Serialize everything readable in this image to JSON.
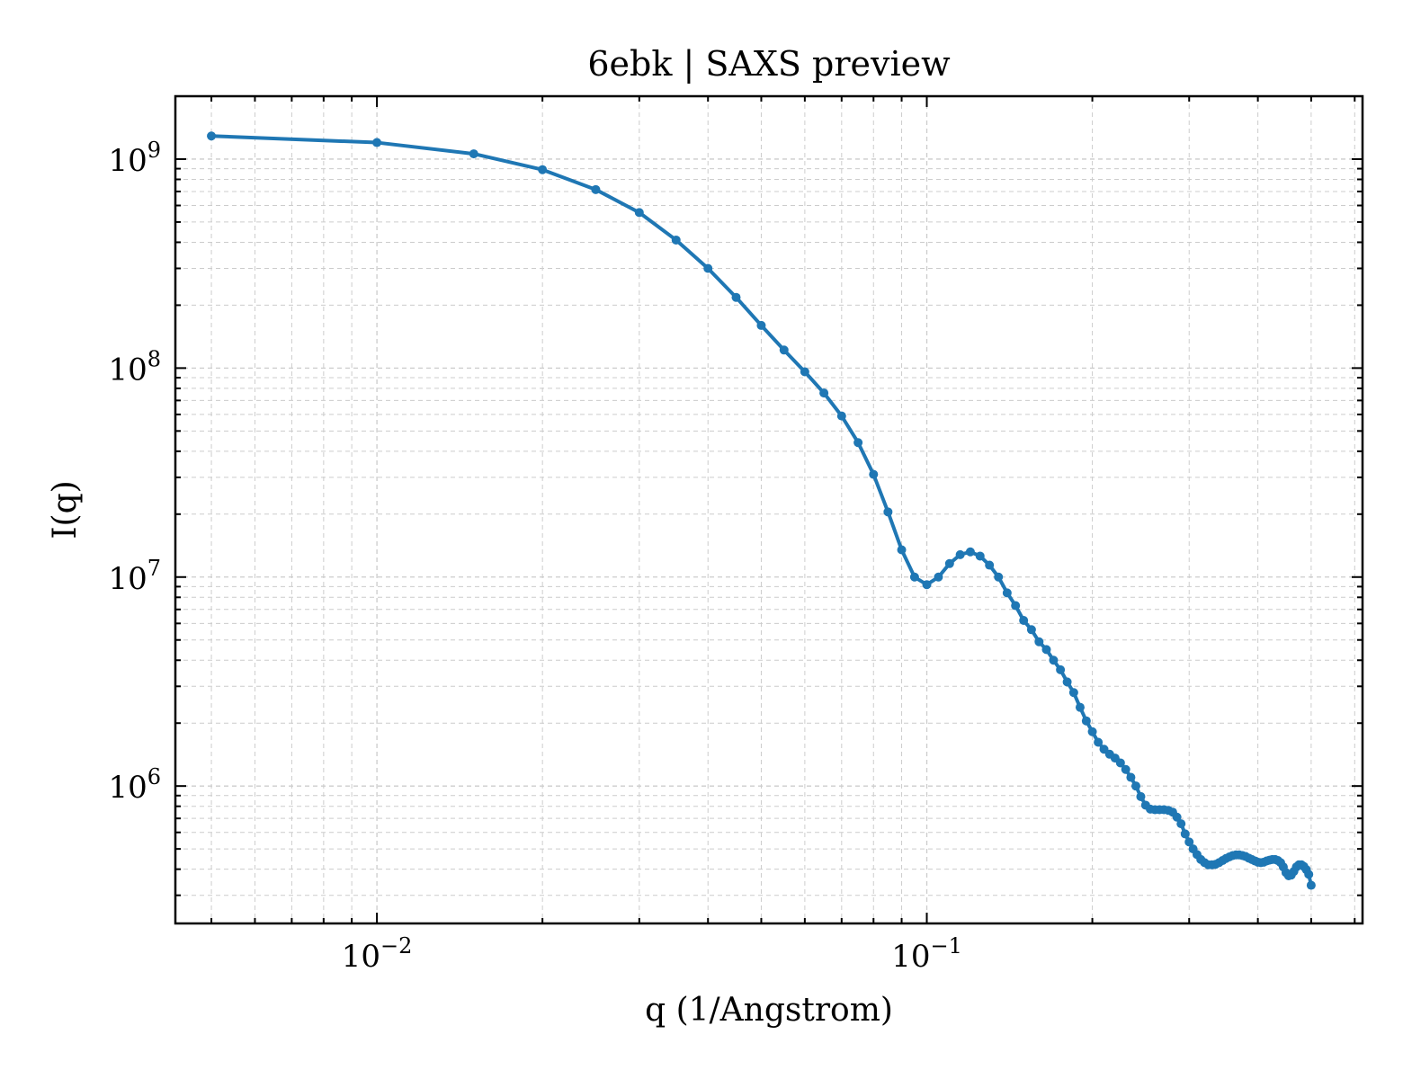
{
  "chart_data": {
    "type": "line",
    "title": "6ebk | SAXS preview",
    "xlabel": "q (1/Angstrom)",
    "ylabel": "I(q)",
    "xscale": "log",
    "yscale": "log",
    "xlim": [
      0.0043,
      0.62
    ],
    "ylim": [
      220000,
      2000000000
    ],
    "grid": true,
    "legend": "none",
    "x_ticks": [
      {
        "base": "10",
        "exp": "−2",
        "value": 0.01
      },
      {
        "base": "10",
        "exp": "−1",
        "value": 0.1
      }
    ],
    "y_ticks": [
      {
        "base": "10",
        "exp": "6",
        "value": 1000000
      },
      {
        "base": "10",
        "exp": "7",
        "value": 10000000
      },
      {
        "base": "10",
        "exp": "8",
        "value": 100000000
      },
      {
        "base": "10",
        "exp": "9",
        "value": 1000000000
      }
    ],
    "series_color": "#1f77b4",
    "x": [
      0.005,
      0.01,
      0.015,
      0.02,
      0.025,
      0.03,
      0.035,
      0.04,
      0.045,
      0.05,
      0.055,
      0.06,
      0.065,
      0.07,
      0.075,
      0.08,
      0.085,
      0.09,
      0.095,
      0.1,
      0.105,
      0.11,
      0.115,
      0.12,
      0.125,
      0.13,
      0.135,
      0.14,
      0.145,
      0.15,
      0.155,
      0.16,
      0.165,
      0.17,
      0.175,
      0.18,
      0.185,
      0.19,
      0.195,
      0.2,
      0.205,
      0.21,
      0.215,
      0.22,
      0.225,
      0.23,
      0.235,
      0.24,
      0.245,
      0.25,
      0.255,
      0.26,
      0.265,
      0.27,
      0.275,
      0.28,
      0.285,
      0.29,
      0.295,
      0.3,
      0.305,
      0.31,
      0.315,
      0.32,
      0.325,
      0.33,
      0.335,
      0.34,
      0.345,
      0.35,
      0.355,
      0.36,
      0.365,
      0.37,
      0.375,
      0.38,
      0.385,
      0.39,
      0.395,
      0.4,
      0.405,
      0.41,
      0.415,
      0.42,
      0.425,
      0.43,
      0.435,
      0.44,
      0.445,
      0.45,
      0.455,
      0.46,
      0.465,
      0.47,
      0.475,
      0.48,
      0.485,
      0.49,
      0.495,
      0.5
    ],
    "y": [
      1290000000,
      1200000000,
      1060000000,
      890000000,
      715000000,
      555000000,
      410000000,
      300000000,
      218000000,
      160000000,
      122000000,
      96000000,
      76000000,
      59000000,
      44000000,
      31000000,
      20500000,
      13500000,
      10000000,
      9200000,
      10000000,
      11600000,
      12800000,
      13200000,
      12600000,
      11400000,
      10000000,
      8400000,
      7300000,
      6200000,
      5600000,
      4900000,
      4500000,
      4000000,
      3600000,
      3150000,
      2800000,
      2380000,
      2050000,
      1820000,
      1620000,
      1500000,
      1420000,
      1360000,
      1290000,
      1200000,
      1100000,
      1000000,
      890000,
      810000,
      775000,
      770000,
      770000,
      770000,
      765000,
      750000,
      710000,
      660000,
      590000,
      540000,
      500000,
      470000,
      445000,
      430000,
      420000,
      420000,
      422000,
      430000,
      440000,
      450000,
      458000,
      465000,
      468000,
      468000,
      465000,
      460000,
      452000,
      445000,
      438000,
      432000,
      430000,
      432000,
      438000,
      442000,
      445000,
      445000,
      440000,
      430000,
      410000,
      385000,
      372000,
      375000,
      390000,
      410000,
      420000,
      420000,
      412000,
      398000,
      378000,
      335000
    ]
  }
}
